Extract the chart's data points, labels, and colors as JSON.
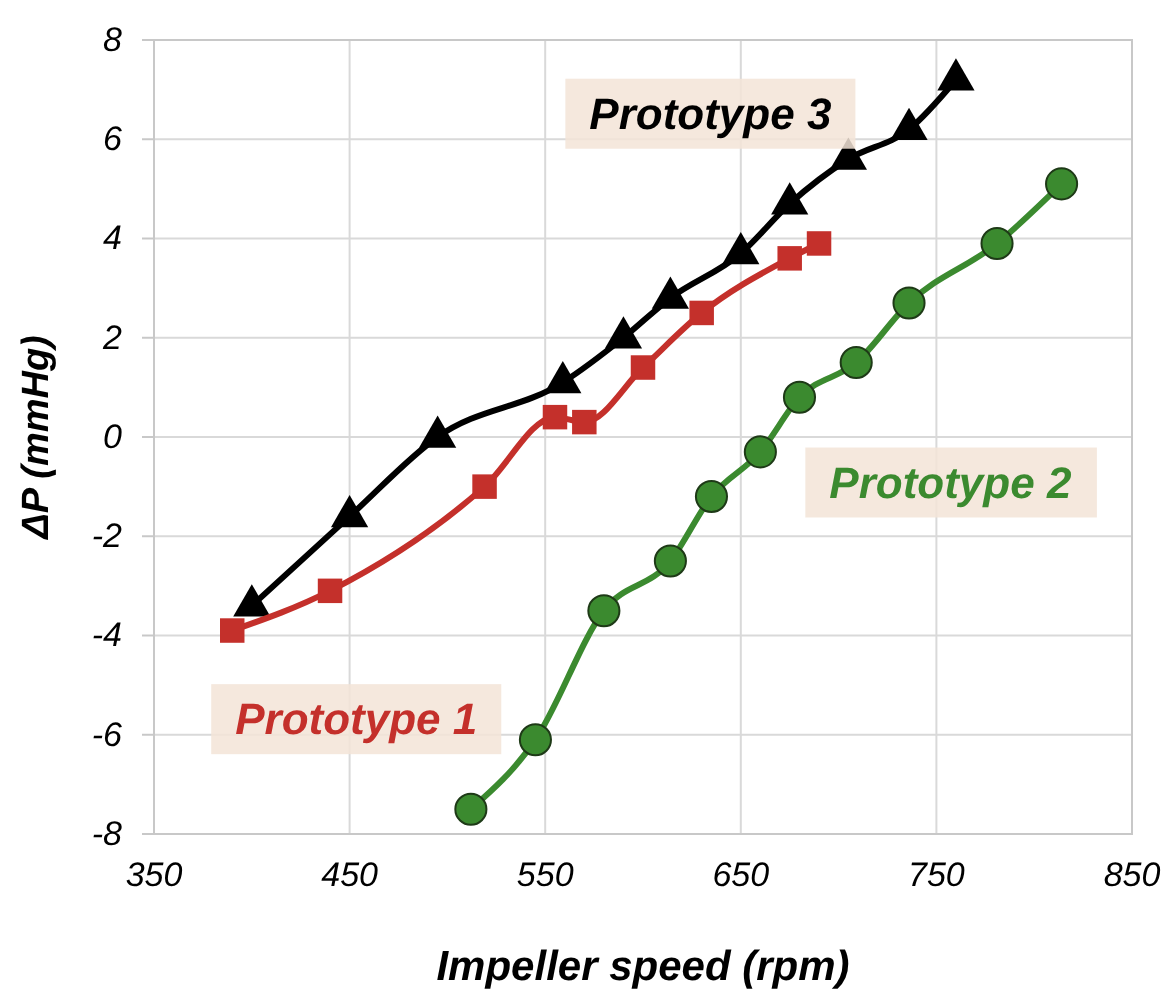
{
  "chart_data": {
    "type": "line",
    "xlabel": "Impeller speed (rpm)",
    "ylabel": "ΔP (mmHg)",
    "xlim": [
      350,
      850
    ],
    "xticks": [
      350,
      450,
      550,
      650,
      750,
      850
    ],
    "ylim": [
      -8,
      8
    ],
    "yticks": [
      -8,
      -6,
      -4,
      -2,
      0,
      2,
      4,
      6,
      8
    ],
    "grid": true,
    "series": [
      {
        "name": "Prototype 3",
        "color": "#000000",
        "marker": "triangle",
        "x": [
          400,
          450,
          495,
          559,
          590,
          614,
          650,
          675,
          705,
          736,
          760
        ],
        "values": [
          -3.4,
          -1.6,
          0,
          1.1,
          2.0,
          2.8,
          3.7,
          4.7,
          5.6,
          6.2,
          7.2
        ]
      },
      {
        "name": "Prototype 1",
        "color": "#c4302b",
        "marker": "square",
        "x": [
          390,
          440,
          519,
          555,
          570,
          600,
          630,
          675,
          690
        ],
        "values": [
          -3.9,
          -3.1,
          -1.0,
          0.4,
          0.3,
          1.4,
          2.5,
          3.6,
          3.9
        ]
      },
      {
        "name": "Prototype 2",
        "color": "#3b8a2f",
        "marker": "circle",
        "x": [
          512,
          545,
          580,
          614,
          635,
          660,
          680,
          709,
          736,
          781,
          814
        ],
        "values": [
          -7.5,
          -6.1,
          -3.5,
          -2.5,
          -1.2,
          -0.3,
          0.8,
          1.5,
          2.7,
          3.9,
          5.1
        ]
      }
    ]
  }
}
